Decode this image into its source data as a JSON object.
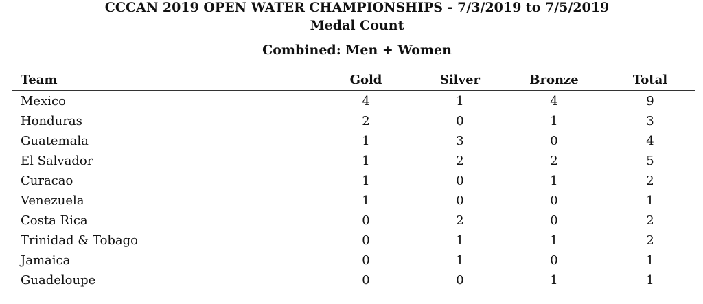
{
  "header": {
    "title": "CCCAN 2019 OPEN WATER CHAMPIONSHIPS - 7/3/2019 to 7/5/2019",
    "subtitle": "Medal Count",
    "section": "Combined: Men + Women"
  },
  "table": {
    "columns": [
      "Team",
      "Gold",
      "Silver",
      "Bronze",
      "Total"
    ],
    "rows": [
      [
        "Mexico",
        4,
        1,
        4,
        9
      ],
      [
        "Honduras",
        2,
        0,
        1,
        3
      ],
      [
        "Guatemala",
        1,
        3,
        0,
        4
      ],
      [
        "El Salvador",
        1,
        2,
        2,
        5
      ],
      [
        "Curacao",
        1,
        0,
        1,
        2
      ],
      [
        "Venezuela",
        1,
        0,
        0,
        1
      ],
      [
        "Costa Rica",
        0,
        2,
        0,
        2
      ],
      [
        "Trinidad & Tobago",
        0,
        1,
        1,
        2
      ],
      [
        "Jamaica",
        0,
        1,
        0,
        1
      ],
      [
        "Guadeloupe",
        0,
        0,
        1,
        1
      ]
    ]
  }
}
